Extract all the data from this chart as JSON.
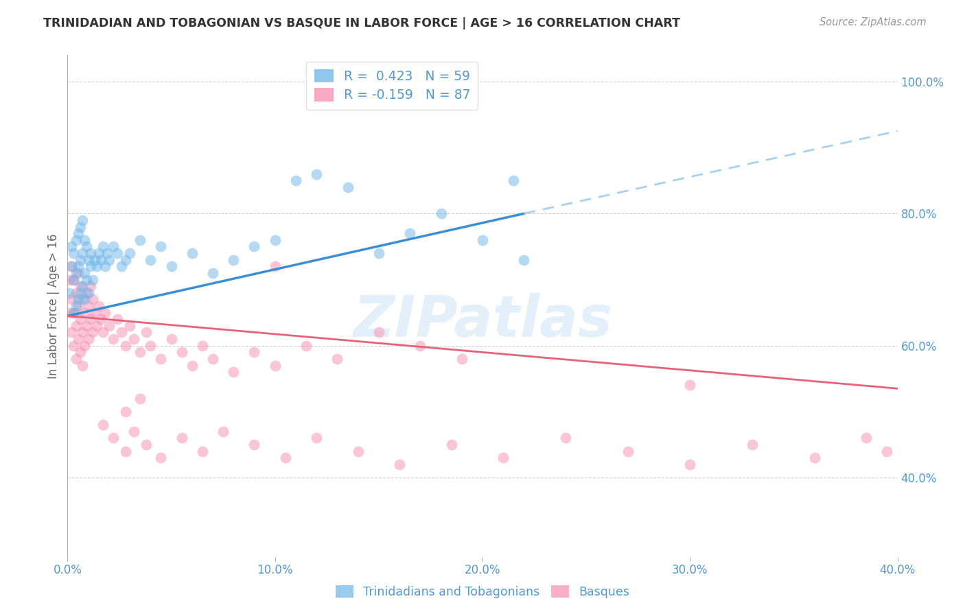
{
  "title": "TRINIDADIAN AND TOBAGONIAN VS BASQUE IN LABOR FORCE | AGE > 16 CORRELATION CHART",
  "source": "Source: ZipAtlas.com",
  "ylabel": "In Labor Force | Age > 16",
  "watermark": "ZIPatlas",
  "xmin": 0.0,
  "xmax": 0.4,
  "ymin": 0.28,
  "ymax": 1.04,
  "yticks": [
    0.4,
    0.6,
    0.8,
    1.0
  ],
  "ytick_labels": [
    "40.0%",
    "60.0%",
    "80.0%",
    "100.0%"
  ],
  "xticks": [
    0.0,
    0.1,
    0.2,
    0.3,
    0.4
  ],
  "xtick_labels": [
    "0.0%",
    "10.0%",
    "20.0%",
    "30.0%",
    "40.0%"
  ],
  "legend1_label": "R =  0.423   N = 59",
  "legend2_label": "R = -0.159   N = 87",
  "legend1_color": "#6eb5e8",
  "legend2_color": "#f78db0",
  "blue_color": "#6eb5e8",
  "pink_color": "#f78db0",
  "trendline_blue_solid": "#3a8fd4",
  "trendline_blue_dashed": "#a8d0f0",
  "trendline_pink": "#e8607a",
  "axis_label_color": "#5599cc",
  "title_color": "#333333",
  "grid_color": "#cccccc",
  "background_color": "#ffffff",
  "blue_trendline_x0": 0.0,
  "blue_trendline_y0": 0.645,
  "blue_trendline_x1": 0.22,
  "blue_trendline_y1": 0.8,
  "blue_trendline_x2": 0.4,
  "blue_trendline_y2": 0.925,
  "pink_trendline_x0": 0.0,
  "pink_trendline_y0": 0.645,
  "pink_trendline_x1": 0.4,
  "pink_trendline_y1": 0.535,
  "trinidadian_x": [
    0.001,
    0.002,
    0.002,
    0.003,
    0.003,
    0.003,
    0.004,
    0.004,
    0.004,
    0.005,
    0.005,
    0.005,
    0.006,
    0.006,
    0.006,
    0.007,
    0.007,
    0.007,
    0.008,
    0.008,
    0.008,
    0.009,
    0.009,
    0.01,
    0.01,
    0.011,
    0.011,
    0.012,
    0.013,
    0.014,
    0.015,
    0.016,
    0.017,
    0.018,
    0.019,
    0.02,
    0.022,
    0.024,
    0.026,
    0.028,
    0.03,
    0.035,
    0.04,
    0.045,
    0.05,
    0.06,
    0.07,
    0.08,
    0.09,
    0.1,
    0.11,
    0.12,
    0.135,
    0.15,
    0.165,
    0.18,
    0.2,
    0.215,
    0.22
  ],
  "trinidadian_y": [
    0.68,
    0.72,
    0.75,
    0.65,
    0.7,
    0.74,
    0.66,
    0.71,
    0.76,
    0.67,
    0.72,
    0.77,
    0.68,
    0.73,
    0.78,
    0.69,
    0.74,
    0.79,
    0.67,
    0.71,
    0.76,
    0.7,
    0.75,
    0.68,
    0.73,
    0.72,
    0.74,
    0.7,
    0.73,
    0.72,
    0.74,
    0.73,
    0.75,
    0.72,
    0.74,
    0.73,
    0.75,
    0.74,
    0.72,
    0.73,
    0.74,
    0.76,
    0.73,
    0.75,
    0.72,
    0.74,
    0.71,
    0.73,
    0.75,
    0.76,
    0.85,
    0.86,
    0.84,
    0.74,
    0.77,
    0.8,
    0.76,
    0.85,
    0.73
  ],
  "basque_x": [
    0.001,
    0.001,
    0.002,
    0.002,
    0.002,
    0.003,
    0.003,
    0.003,
    0.004,
    0.004,
    0.004,
    0.005,
    0.005,
    0.005,
    0.006,
    0.006,
    0.006,
    0.007,
    0.007,
    0.007,
    0.008,
    0.008,
    0.009,
    0.009,
    0.01,
    0.01,
    0.011,
    0.011,
    0.012,
    0.012,
    0.013,
    0.014,
    0.015,
    0.016,
    0.017,
    0.018,
    0.02,
    0.022,
    0.024,
    0.026,
    0.028,
    0.03,
    0.032,
    0.035,
    0.038,
    0.04,
    0.045,
    0.05,
    0.055,
    0.06,
    0.065,
    0.07,
    0.08,
    0.09,
    0.1,
    0.115,
    0.13,
    0.15,
    0.17,
    0.19,
    0.017,
    0.022,
    0.028,
    0.032,
    0.038,
    0.045,
    0.055,
    0.065,
    0.075,
    0.09,
    0.105,
    0.12,
    0.14,
    0.16,
    0.185,
    0.21,
    0.24,
    0.27,
    0.3,
    0.33,
    0.36,
    0.385,
    0.395,
    0.028,
    0.035,
    0.1,
    0.3
  ],
  "basque_y": [
    0.65,
    0.7,
    0.62,
    0.67,
    0.72,
    0.6,
    0.65,
    0.7,
    0.58,
    0.63,
    0.68,
    0.61,
    0.66,
    0.71,
    0.59,
    0.64,
    0.69,
    0.57,
    0.62,
    0.67,
    0.6,
    0.65,
    0.63,
    0.68,
    0.61,
    0.66,
    0.64,
    0.69,
    0.62,
    0.67,
    0.65,
    0.63,
    0.66,
    0.64,
    0.62,
    0.65,
    0.63,
    0.61,
    0.64,
    0.62,
    0.6,
    0.63,
    0.61,
    0.59,
    0.62,
    0.6,
    0.58,
    0.61,
    0.59,
    0.57,
    0.6,
    0.58,
    0.56,
    0.59,
    0.57,
    0.6,
    0.58,
    0.62,
    0.6,
    0.58,
    0.48,
    0.46,
    0.44,
    0.47,
    0.45,
    0.43,
    0.46,
    0.44,
    0.47,
    0.45,
    0.43,
    0.46,
    0.44,
    0.42,
    0.45,
    0.43,
    0.46,
    0.44,
    0.42,
    0.45,
    0.43,
    0.46,
    0.44,
    0.5,
    0.52,
    0.72,
    0.54
  ]
}
